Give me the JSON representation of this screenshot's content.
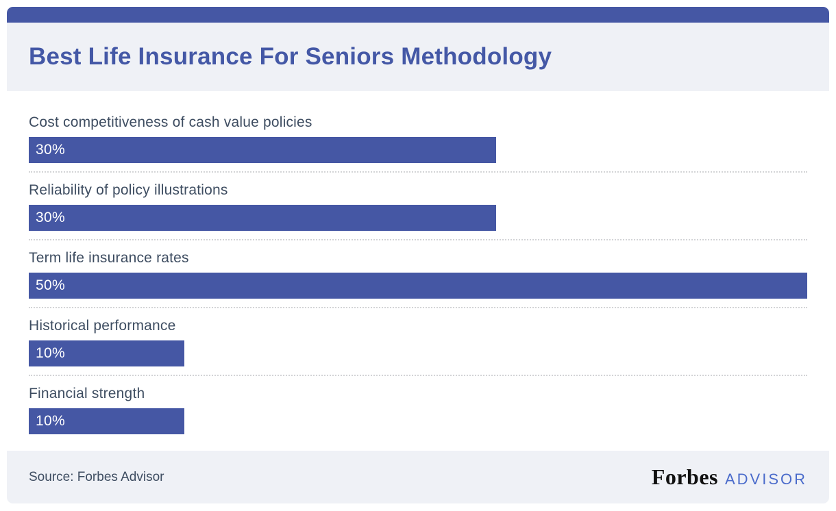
{
  "header": {
    "title": "Best Life Insurance For Seniors Methodology"
  },
  "chart_data": {
    "type": "bar",
    "orientation": "horizontal",
    "title": "Best Life Insurance For Seniors Methodology",
    "categories": [
      "Cost competitiveness of cash value policies",
      "Reliability of policy illustrations",
      "Term life insurance rates",
      "Historical performance",
      "Financial strength"
    ],
    "values": [
      30,
      30,
      50,
      10,
      10
    ],
    "value_labels": [
      "30%",
      "30%",
      "50%",
      "10%",
      "10%"
    ],
    "xlabel": "",
    "ylabel": "",
    "xlim": [
      0,
      50
    ],
    "grid": false,
    "legend": false,
    "bar_color": "#4557a4"
  },
  "footer": {
    "source": "Source: Forbes Advisor",
    "brand": "Forbes",
    "brand_suffix": "ADVISOR"
  },
  "colors": {
    "accent_blue": "#4557a4",
    "title_blue": "#4458a6",
    "panel_bg": "#eff1f6",
    "label_text": "#3e4d61",
    "advisor_blue": "#4a6bcb",
    "separator": "#d3d4d6"
  }
}
